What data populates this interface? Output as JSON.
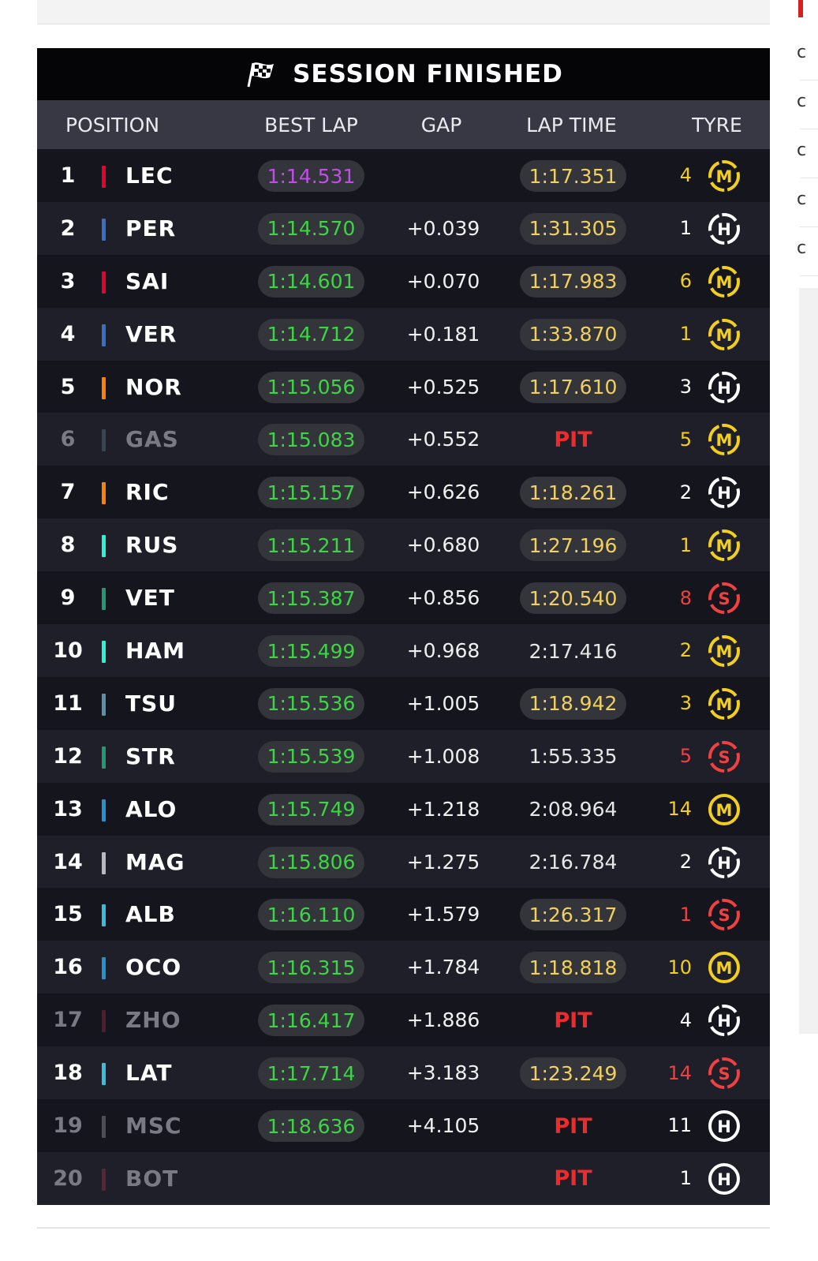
{
  "banner": {
    "title": "SESSION FINISHED"
  },
  "headers": {
    "position": "POSITION",
    "best_lap": "BEST LAP",
    "gap": "GAP",
    "lap_time": "LAP TIME",
    "tyre": "TYRE"
  },
  "colors": {
    "soft": "#f04040",
    "medium": "#f2cf1d",
    "hard": "#ffffff",
    "best_green": "#3dd446",
    "fastest_purple": "#c04de6",
    "lap_yellow": "#f0d060",
    "pit_red": "#f02a2a"
  },
  "rows": [
    {
      "pos": "1",
      "code": "LEC",
      "team_color": "#e8002d",
      "best": "1:14.531",
      "best_fastest": true,
      "gap": "",
      "lap": "1:17.351",
      "lap_style": "pill",
      "tyre_count": "4",
      "tyre": "M",
      "tyre_label": "M",
      "new_tyre": false,
      "dim": false
    },
    {
      "pos": "2",
      "code": "PER",
      "team_color": "#3671c6",
      "best": "1:14.570",
      "best_fastest": false,
      "gap": "+0.039",
      "lap": "1:31.305",
      "lap_style": "pill",
      "tyre_count": "1",
      "tyre": "H",
      "tyre_label": "H",
      "new_tyre": false,
      "dim": false
    },
    {
      "pos": "3",
      "code": "SAI",
      "team_color": "#e8002d",
      "best": "1:14.601",
      "best_fastest": false,
      "gap": "+0.070",
      "lap": "1:17.983",
      "lap_style": "pill",
      "tyre_count": "6",
      "tyre": "M",
      "tyre_label": "M",
      "new_tyre": false,
      "dim": false
    },
    {
      "pos": "4",
      "code": "VER",
      "team_color": "#3671c6",
      "best": "1:14.712",
      "best_fastest": false,
      "gap": "+0.181",
      "lap": "1:33.870",
      "lap_style": "pill",
      "tyre_count": "1",
      "tyre": "M",
      "tyre_label": "M",
      "new_tyre": false,
      "dim": false
    },
    {
      "pos": "5",
      "code": "NOR",
      "team_color": "#ff8000",
      "best": "1:15.056",
      "best_fastest": false,
      "gap": "+0.525",
      "lap": "1:17.610",
      "lap_style": "pill",
      "tyre_count": "3",
      "tyre": "H",
      "tyre_label": "H",
      "new_tyre": false,
      "dim": false
    },
    {
      "pos": "6",
      "code": "GAS",
      "team_color": "#5e8faa",
      "best": "1:15.083",
      "best_fastest": false,
      "gap": "+0.552",
      "lap": "PIT",
      "lap_style": "pit",
      "tyre_count": "5",
      "tyre": "M",
      "tyre_label": "M",
      "new_tyre": false,
      "dim": true
    },
    {
      "pos": "7",
      "code": "RIC",
      "team_color": "#ff8000",
      "best": "1:15.157",
      "best_fastest": false,
      "gap": "+0.626",
      "lap": "1:18.261",
      "lap_style": "pill",
      "tyre_count": "2",
      "tyre": "H",
      "tyre_label": "H",
      "new_tyre": false,
      "dim": false
    },
    {
      "pos": "8",
      "code": "RUS",
      "team_color": "#27f4d2",
      "best": "1:15.211",
      "best_fastest": false,
      "gap": "+0.680",
      "lap": "1:27.196",
      "lap_style": "pill",
      "tyre_count": "1",
      "tyre": "M",
      "tyre_label": "M",
      "new_tyre": false,
      "dim": false
    },
    {
      "pos": "9",
      "code": "VET",
      "team_color": "#229971",
      "best": "1:15.387",
      "best_fastest": false,
      "gap": "+0.856",
      "lap": "1:20.540",
      "lap_style": "pill",
      "tyre_count": "8",
      "tyre": "S",
      "tyre_label": "S",
      "new_tyre": false,
      "dim": false
    },
    {
      "pos": "10",
      "code": "HAM",
      "team_color": "#27f4d2",
      "best": "1:15.499",
      "best_fastest": false,
      "gap": "+0.968",
      "lap": "2:17.416",
      "lap_style": "plain",
      "tyre_count": "2",
      "tyre": "M",
      "tyre_label": "M",
      "new_tyre": false,
      "dim": false
    },
    {
      "pos": "11",
      "code": "TSU",
      "team_color": "#5e8faa",
      "best": "1:15.536",
      "best_fastest": false,
      "gap": "+1.005",
      "lap": "1:18.942",
      "lap_style": "pill",
      "tyre_count": "3",
      "tyre": "M",
      "tyre_label": "M",
      "new_tyre": false,
      "dim": false
    },
    {
      "pos": "12",
      "code": "STR",
      "team_color": "#229971",
      "best": "1:15.539",
      "best_fastest": false,
      "gap": "+1.008",
      "lap": "1:55.335",
      "lap_style": "plain",
      "tyre_count": "5",
      "tyre": "S",
      "tyre_label": "S",
      "new_tyre": false,
      "dim": false
    },
    {
      "pos": "13",
      "code": "ALO",
      "team_color": "#2293d1",
      "best": "1:15.749",
      "best_fastest": false,
      "gap": "+1.218",
      "lap": "2:08.964",
      "lap_style": "plain",
      "tyre_count": "14",
      "tyre": "M",
      "tyre_label": "M",
      "new_tyre": true,
      "dim": false
    },
    {
      "pos": "14",
      "code": "MAG",
      "team_color": "#b6babd",
      "best": "1:15.806",
      "best_fastest": false,
      "gap": "+1.275",
      "lap": "2:16.784",
      "lap_style": "plain",
      "tyre_count": "2",
      "tyre": "H",
      "tyre_label": "H",
      "new_tyre": false,
      "dim": false
    },
    {
      "pos": "15",
      "code": "ALB",
      "team_color": "#37bedd",
      "best": "1:16.110",
      "best_fastest": false,
      "gap": "+1.579",
      "lap": "1:26.317",
      "lap_style": "pill",
      "tyre_count": "1",
      "tyre": "S",
      "tyre_label": "S",
      "new_tyre": false,
      "dim": false
    },
    {
      "pos": "16",
      "code": "OCO",
      "team_color": "#2293d1",
      "best": "1:16.315",
      "best_fastest": false,
      "gap": "+1.784",
      "lap": "1:18.818",
      "lap_style": "pill",
      "tyre_count": "10",
      "tyre": "M",
      "tyre_label": "M",
      "new_tyre": true,
      "dim": false
    },
    {
      "pos": "17",
      "code": "ZHO",
      "team_color": "#c92d4b",
      "best": "1:16.417",
      "best_fastest": false,
      "gap": "+1.886",
      "lap": "PIT",
      "lap_style": "pit",
      "tyre_count": "4",
      "tyre": "H",
      "tyre_label": "H",
      "new_tyre": false,
      "dim": true
    },
    {
      "pos": "18",
      "code": "LAT",
      "team_color": "#37bedd",
      "best": "1:17.714",
      "best_fastest": false,
      "gap": "+3.183",
      "lap": "1:23.249",
      "lap_style": "pill",
      "tyre_count": "14",
      "tyre": "S",
      "tyre_label": "S",
      "new_tyre": false,
      "dim": false
    },
    {
      "pos": "19",
      "code": "MSC",
      "team_color": "#b6babd",
      "best": "1:18.636",
      "best_fastest": false,
      "gap": "+4.105",
      "lap": "PIT",
      "lap_style": "pit",
      "tyre_count": "11",
      "tyre": "H",
      "tyre_label": "H",
      "new_tyre": true,
      "dim": true
    },
    {
      "pos": "20",
      "code": "BOT",
      "team_color": "#c92d4b",
      "best": "",
      "best_fastest": false,
      "gap": "",
      "lap": "PIT",
      "lap_style": "pit",
      "tyre_count": "1",
      "tyre": "H",
      "tyre_label": "H",
      "new_tyre": true,
      "dim": true
    }
  ],
  "sidebar": {
    "letters": [
      "c",
      "c",
      "c",
      "c",
      "c"
    ]
  }
}
